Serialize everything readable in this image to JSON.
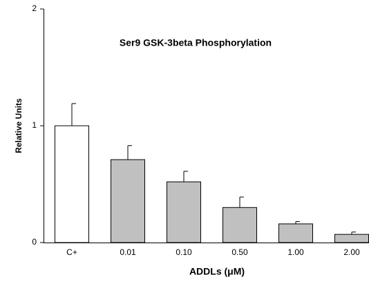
{
  "chart_data": {
    "type": "bar",
    "title": "Ser9 GSK-3beta Phosphorylation",
    "x_label": "ADDLs (μM)",
    "y_label": "Relative Units",
    "categories": [
      "C+",
      "0.01",
      "0.10",
      "0.50",
      "1.00",
      "2.00"
    ],
    "values": [
      1.0,
      0.71,
      0.52,
      0.3,
      0.16,
      0.07
    ],
    "errors": [
      0.19,
      0.12,
      0.09,
      0.09,
      0.02,
      0.02
    ],
    "colors": [
      "#ffffff",
      "#c0c0c0",
      "#c0c0c0",
      "#c0c0c0",
      "#c0c0c0",
      "#c0c0c0"
    ],
    "ylim": [
      0,
      2
    ],
    "yticks": [
      0,
      1,
      2
    ]
  }
}
